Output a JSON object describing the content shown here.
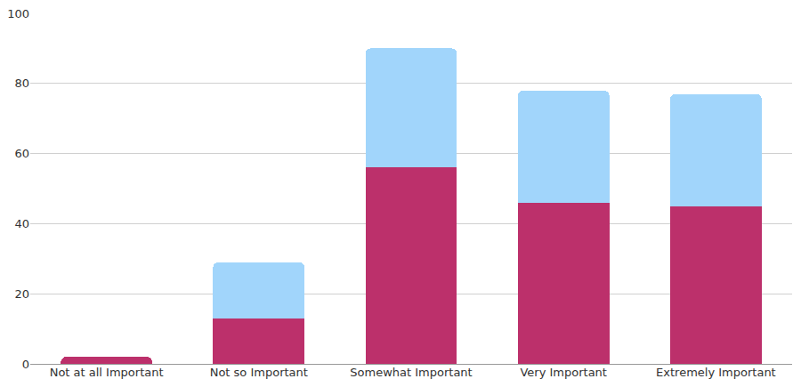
{
  "chart_data": {
    "type": "bar",
    "categories": [
      "Not at all Important",
      "Not so Important",
      "Somewhat Important",
      "Very Important",
      "Extremely Important"
    ],
    "series": [
      {
        "color": "#bc306b",
        "values": [
          2,
          13,
          56,
          46,
          45
        ]
      },
      {
        "color": "#a1d5fb",
        "values": [
          0,
          16,
          34,
          32,
          32
        ]
      }
    ],
    "stacked": true,
    "ylim": [
      0,
      100
    ],
    "yticks": [
      0,
      20,
      40,
      60,
      80,
      100
    ],
    "grid": true
  }
}
